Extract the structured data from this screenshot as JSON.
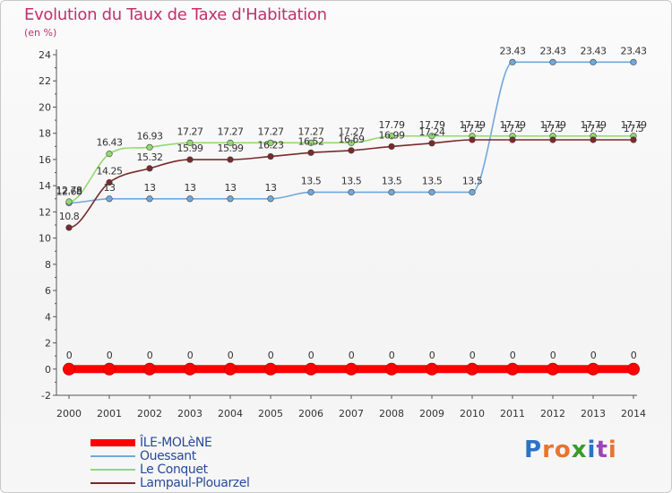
{
  "title": "Evolution du Taux de Taxe d'Habitation",
  "subtitle": "(en %)",
  "logo": {
    "text": "Proxiti",
    "colors": [
      "#2b73c6",
      "#e8742e",
      "#e8742e",
      "#3a9a2c",
      "#2b73c6",
      "#9a46b8",
      "#e8742e"
    ]
  },
  "chart_data": {
    "type": "line",
    "title": "Evolution du Taux de Taxe d'Habitation",
    "subtitle": "(en %)",
    "xlabel": "",
    "ylabel": "",
    "x": [
      2000,
      2001,
      2002,
      2003,
      2004,
      2005,
      2006,
      2007,
      2008,
      2009,
      2010,
      2011,
      2012,
      2013,
      2014
    ],
    "ylim": [
      -2,
      24
    ],
    "yticks": [
      -2,
      0,
      2,
      4,
      6,
      8,
      10,
      12,
      14,
      16,
      18,
      20,
      22,
      24
    ],
    "grid": false,
    "legend_position": "bottom-left",
    "series": [
      {
        "name": "ÎLE-MOLèNE",
        "color": "#ff0000",
        "values": [
          0,
          0,
          0,
          0,
          0,
          0,
          0,
          0,
          0,
          0,
          0,
          0,
          0,
          0,
          0
        ],
        "labels": [
          "0",
          "0",
          "0",
          "0",
          "0",
          "0",
          "0",
          "0",
          "0",
          "0",
          "0",
          "0",
          "0",
          "0",
          "0"
        ]
      },
      {
        "name": "Ouessant",
        "color": "#6fa8dc",
        "values": [
          12.68,
          13,
          13,
          13,
          13,
          13,
          13.5,
          13.5,
          13.5,
          13.5,
          13.5,
          23.43,
          23.43,
          23.43,
          23.43
        ],
        "labels": [
          "12.68",
          "13",
          "13",
          "13",
          "13",
          "13",
          "13.5",
          "13.5",
          "13.5",
          "13.5",
          "13.5",
          "23.43",
          "23.43",
          "23.43",
          "23.43"
        ]
      },
      {
        "name": "Le Conquet",
        "color": "#93d96e",
        "values": [
          12.78,
          16.43,
          16.93,
          17.27,
          17.27,
          17.27,
          17.27,
          17.27,
          17.79,
          17.79,
          17.79,
          17.79,
          17.79,
          17.79,
          17.79
        ],
        "labels": [
          "12.78",
          "16.43",
          "16.93",
          "17.27",
          "17.27",
          "17.27",
          "17.27",
          "17.27",
          "17.79",
          "17.79",
          "17.79",
          "17.79",
          "17.79",
          "17.79",
          "17.79"
        ]
      },
      {
        "name": "Lampaul-Plouarzel",
        "color": "#7a2a2a",
        "values": [
          10.8,
          14.25,
          15.32,
          15.99,
          15.99,
          16.23,
          16.52,
          16.69,
          16.99,
          17.24,
          17.5,
          17.5,
          17.5,
          17.5,
          17.5
        ],
        "labels": [
          "10.8",
          "14.25",
          "15.32",
          "15.99",
          "15.99",
          "16.23",
          "16.52",
          "16.69",
          "16.99",
          "17.24",
          "17.5",
          "17.5",
          "17.5",
          "17.5",
          "17.5"
        ]
      }
    ]
  }
}
